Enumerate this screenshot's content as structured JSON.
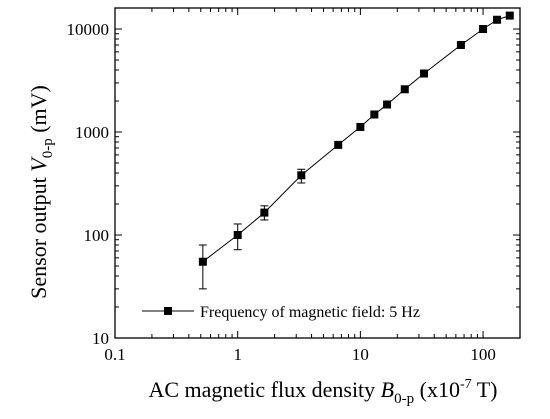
{
  "chart_data": {
    "type": "scatter",
    "title": "",
    "x_scale": "log",
    "y_scale": "log",
    "xlim": [
      0.1,
      200
    ],
    "ylim": [
      10,
      16000
    ],
    "grid": false,
    "legend_placement": "bottom-right",
    "xlabel": {
      "prefix": "AC magnetic flux density ",
      "symbol": "B",
      "subscript": "0-p",
      "unit_prefix": " (x10",
      "unit_exponent": "-7",
      "unit_suffix": " T)"
    },
    "ylabel": {
      "prefix": "Sensor output ",
      "symbol": "V",
      "subscript": "0-p",
      "unit": " (mV)"
    },
    "x_ticks": [
      {
        "value": 0.1,
        "label": "0.1"
      },
      {
        "value": 1,
        "label": "1"
      },
      {
        "value": 10,
        "label": "10"
      },
      {
        "value": 100,
        "label": "100"
      }
    ],
    "y_ticks": [
      {
        "value": 10,
        "label": "10"
      },
      {
        "value": 100,
        "label": "100"
      },
      {
        "value": 1000,
        "label": "1000"
      },
      {
        "value": 10000,
        "label": "10000"
      }
    ],
    "series": [
      {
        "name": "Frequency of magnetic field: 5 Hz",
        "color": "#000000",
        "marker": "square",
        "x": [
          0.52,
          1.0,
          1.65,
          3.3,
          6.6,
          10,
          13,
          16.5,
          23,
          33,
          66,
          100,
          130,
          165
        ],
        "y": [
          55,
          100,
          165,
          380,
          750,
          1120,
          1480,
          1850,
          2600,
          3700,
          7000,
          10000,
          12300,
          13500
        ],
        "err_low": [
          30,
          72,
          140,
          320
        ],
        "err_high": [
          80,
          128,
          192,
          435
        ]
      }
    ]
  }
}
